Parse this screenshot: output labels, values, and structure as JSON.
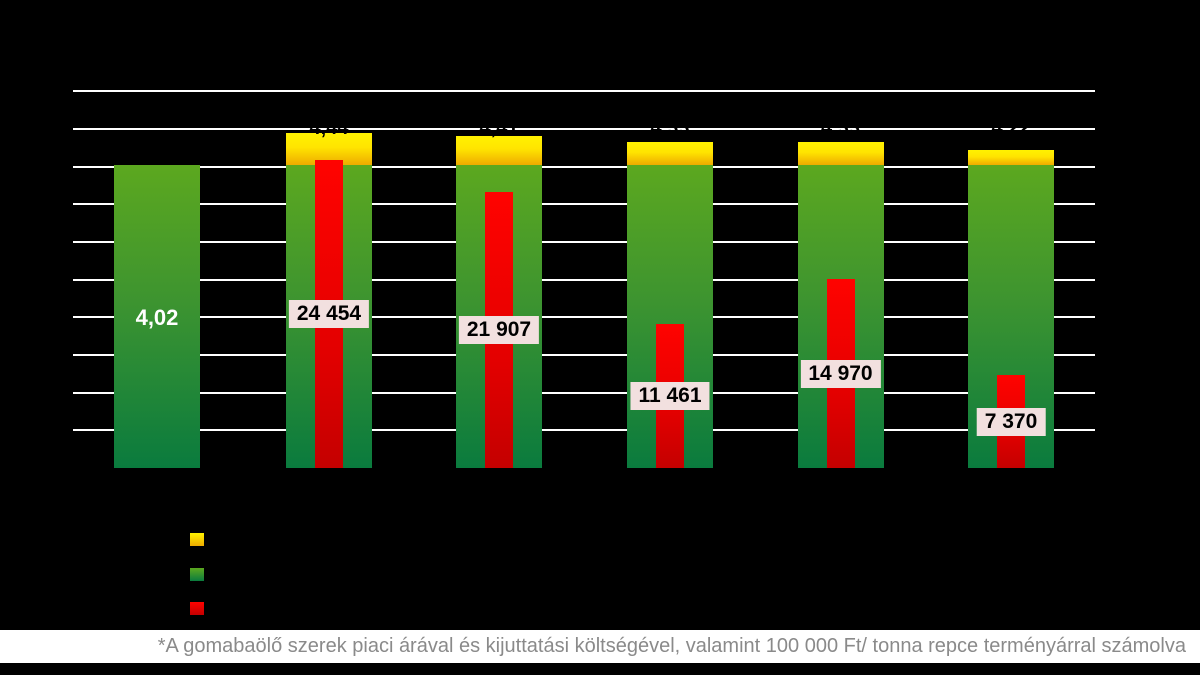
{
  "footnote": "*A gomabaölő szerek piaci árával és kijuttatási költségével, valamint 100 000 Ft/ tonna repce terményárral számolva",
  "colors": {
    "background": "#000000",
    "gridline": "#ffffff",
    "green_top": "#5ca81f",
    "green_bottom": "#0a7b3e",
    "yellow_top": "#fff200",
    "yellow_bottom": "#eeab00",
    "red": "#e40000",
    "cost_label_bg": "#f2e0df",
    "cost_label_text": "#000000",
    "yield_label_text": "#ffffff",
    "footnote_bg": "#ffffff",
    "footnote_text": "#8a8a8a"
  },
  "legend": {
    "items": [
      {
        "swatch": "yellow",
        "label": ""
      },
      {
        "swatch": "green",
        "label": ""
      },
      {
        "swatch": "red",
        "label": ""
      }
    ]
  },
  "chart_data": {
    "type": "bar",
    "title": "",
    "categories": [
      "",
      "",
      "",
      "",
      "",
      ""
    ],
    "series": [
      {
        "name": "base-yield-green",
        "values": [
          4.02,
          4.02,
          4.02,
          4.02,
          4.02,
          4.02
        ]
      },
      {
        "name": "yield-increase-yellow",
        "values": [
          0,
          0.42,
          0.39,
          0.31,
          0.31,
          0.2
        ]
      },
      {
        "name": "fungicide-cost-red",
        "values": [
          0,
          24454,
          21907,
          11461,
          14970,
          7370
        ]
      }
    ],
    "value_labels": {
      "control_yield": "4,02",
      "costs": [
        "24 454",
        "21 907",
        "11 461",
        "14 970",
        "7 370"
      ],
      "top_black_text": [
        "",
        "4,44",
        "4,41",
        "4,33",
        "4,33",
        "4,22"
      ]
    },
    "axes": {
      "primary": {
        "min": 0,
        "max": 5,
        "step": 0.5
      },
      "secondary": {
        "min": 0,
        "max": 30000,
        "step": 3000
      }
    },
    "grid": true,
    "legend_position": "bottom-left"
  }
}
